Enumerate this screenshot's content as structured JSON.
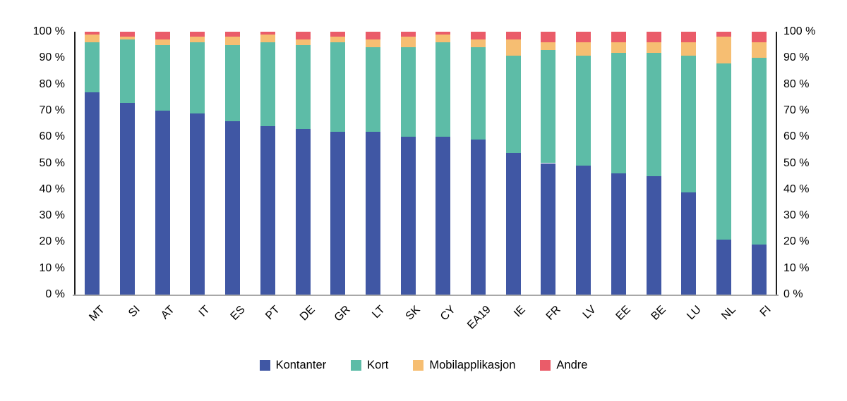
{
  "chart_data": {
    "type": "bar",
    "stacked": true,
    "stacked_total": 100,
    "unit": "%",
    "title": "",
    "xlabel": "",
    "ylabel": "",
    "categories": [
      "MT",
      "SI",
      "AT",
      "IT",
      "ES",
      "PT",
      "DE",
      "GR",
      "LT",
      "SK",
      "CY",
      "EA19",
      "IE",
      "FR",
      "LV",
      "EE",
      "BE",
      "LU",
      "NL",
      "FI"
    ],
    "series": [
      {
        "name": "Kontanter",
        "color": "#4057A4",
        "values": [
          77,
          73,
          70,
          69,
          66,
          64,
          63,
          62,
          62,
          60,
          60,
          59,
          54,
          50,
          49,
          46,
          45,
          39,
          21,
          19
        ]
      },
      {
        "name": "Kort",
        "color": "#5DBCA7",
        "values": [
          19,
          24,
          25,
          27,
          29,
          32,
          32,
          34,
          32,
          34,
          36,
          35,
          37,
          43,
          42,
          46,
          47,
          52,
          67,
          71
        ]
      },
      {
        "name": "Mobilapplikasjon",
        "color": "#F6BE72",
        "values": [
          3,
          1,
          2,
          2,
          3,
          3,
          2,
          2,
          3,
          4,
          3,
          3,
          6,
          3,
          5,
          4,
          4,
          5,
          10,
          6
        ]
      },
      {
        "name": "Andre",
        "color": "#EA5C69",
        "values": [
          1,
          2,
          3,
          2,
          2,
          1,
          3,
          2,
          3,
          2,
          1,
          3,
          3,
          4,
          4,
          4,
          4,
          4,
          2,
          4
        ]
      }
    ],
    "y_axis": {
      "min": 0,
      "max": 100,
      "tick_step": 10,
      "tick_suffix": " %",
      "sides": [
        "left",
        "right"
      ]
    },
    "x_tick_rotation_deg": -45,
    "grid": false,
    "legend_position": "bottom",
    "axis_colors": {
      "y_axis_line": "#1f1f1f",
      "x_axis_line": "#a8a8a8",
      "tick_text": "#000000"
    }
  }
}
